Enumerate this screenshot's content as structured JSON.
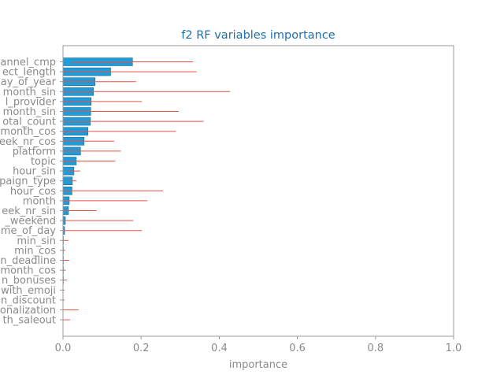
{
  "chart_data": {
    "type": "bar",
    "orientation": "horizontal",
    "title": "f2 RF variables importance",
    "xlabel": "importance",
    "ylabel": "",
    "xlim": [
      0,
      1.0
    ],
    "xticks": [
      "0.0",
      "0.2",
      "0.4",
      "0.6",
      "0.8",
      "1.0"
    ],
    "xtick_values": [
      0,
      0.2,
      0.4,
      0.6,
      0.8,
      1.0
    ],
    "grid": false,
    "categories": [
      "annel_cmp",
      "ect_length",
      "ay_of_year",
      "month_sin",
      "l_provider",
      "month_sin",
      "otal_count",
      "month_cos",
      "eek_nr_cos",
      "platform",
      "topic",
      "hour_sin",
      "paign_type",
      "hour_cos",
      "month",
      "eek_nr_sin",
      "_weekend",
      "me_of_day",
      "min_sin",
      "min_cos",
      "n_deadline",
      "month_cos",
      "n_bonuses",
      "with_emoji",
      "n_discount",
      "onalization",
      "th_saleout"
    ],
    "values": [
      0.178,
      0.122,
      0.082,
      0.078,
      0.072,
      0.071,
      0.07,
      0.064,
      0.054,
      0.045,
      0.034,
      0.028,
      0.024,
      0.023,
      0.016,
      0.014,
      0.006,
      0.004,
      0.001,
      0.001,
      0.001,
      0.001,
      0.001,
      0.0,
      0.0,
      0.0,
      0.0
    ],
    "error": [
      0.155,
      0.22,
      0.105,
      0.35,
      0.13,
      0.225,
      0.29,
      0.225,
      0.077,
      0.103,
      0.1,
      0.016,
      0.01,
      0.233,
      0.2,
      0.072,
      0.174,
      0.198,
      0.013,
      0.005,
      0.015,
      0.006,
      0.009,
      0.004,
      0.004,
      0.04,
      0.018
    ],
    "colors": {
      "bar": "#1f9bd7",
      "bar_edge": "#1a6e99",
      "error": "#e8504a",
      "title": "#1a6fa8",
      "axis": "#9a9a9a",
      "text": "#8a8a8a"
    }
  }
}
